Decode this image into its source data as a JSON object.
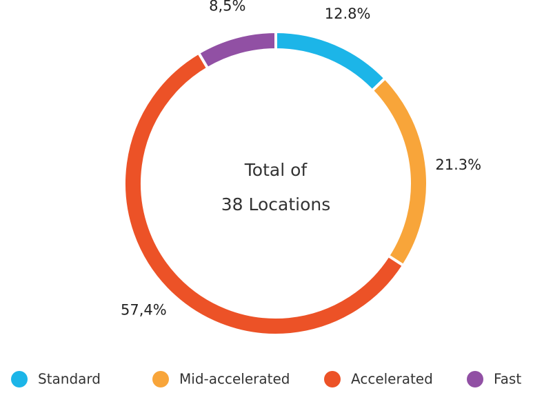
{
  "chart_data": {
    "type": "donut",
    "center_text": [
      "Total of",
      "38 Locations"
    ],
    "categories": [
      "Standard",
      "Mid-accelerated",
      "Accelerated",
      "Fast"
    ],
    "values": [
      12.8,
      21.3,
      57.4,
      8.5
    ],
    "value_labels": [
      "12.8%",
      "21.3%",
      "57,4%",
      "8,5%"
    ],
    "colors": [
      "#1cb5e8",
      "#f8a53a",
      "#ec5227",
      "#9150a4"
    ]
  }
}
